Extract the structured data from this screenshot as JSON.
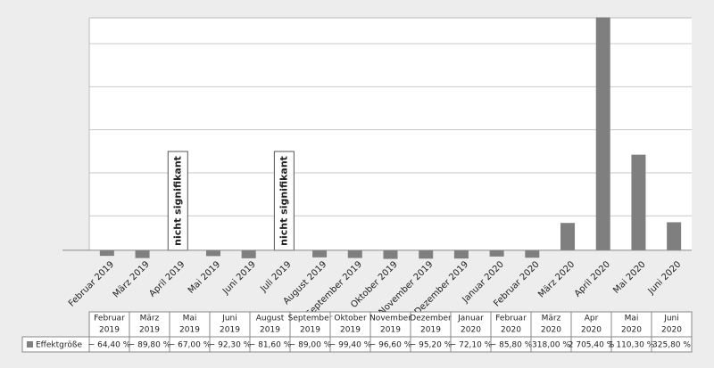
{
  "chart_data": {
    "type": "bar",
    "categories": [
      "Februar 2019",
      "März 2019",
      "April 2019",
      "Mai 2019",
      "Juni 2019",
      "Juli 2019",
      "August 2019",
      "September 2019",
      "Oktober 2019",
      "November 2019",
      "Dezember 2019",
      "Januar 2020",
      "Februar 2020",
      "März 2020",
      "April 2020",
      "Mai 2020",
      "Juni 2020"
    ],
    "series": [
      {
        "name": "Effektgröße",
        "color": "#7f7f7f",
        "values": [
          -64.4,
          -89.8,
          null,
          -67.0,
          -92.3,
          null,
          -81.6,
          -89.0,
          -99.4,
          -96.6,
          -95.2,
          -72.1,
          -85.8,
          318.0,
          2705.4,
          1110.3,
          325.8
        ],
        "value_labels": [
          "− 64,40 %",
          "− 89,80 %",
          null,
          "− 67,00 %",
          "− 92,30 %",
          null,
          "− 81,60 %",
          "− 89,00 %",
          "− 99,40 %",
          "− 96,60 %",
          "− 95,20 %",
          "− 72,10 %",
          "− 85,80 %",
          "318,00 %",
          "2 705,40 %",
          "1 110,30 %",
          "325,80 %"
        ]
      }
    ],
    "annotations": [
      "nicht signifikant",
      "nicht signifikant"
    ],
    "ylim": [
      -100,
      2700
    ],
    "yticks": [
      400,
      900,
      1400,
      1900,
      2400
    ],
    "grid": true,
    "table_columns": [
      [
        "Februar",
        "2019"
      ],
      [
        "März",
        "2019"
      ],
      [
        "Mai",
        "2019"
      ],
      [
        "Juni",
        "2019"
      ],
      [
        "August",
        "2019"
      ],
      [
        "September",
        "2019"
      ],
      [
        "Oktober",
        "2019"
      ],
      [
        "November",
        "2019"
      ],
      [
        "Dezember",
        "2019"
      ],
      [
        "Januar",
        "2020"
      ],
      [
        "Februar",
        "2020"
      ],
      [
        "März",
        "2020"
      ],
      [
        "Apr",
        "2020"
      ],
      [
        "Mai",
        "2020"
      ],
      [
        "Juni",
        "2020"
      ]
    ]
  }
}
